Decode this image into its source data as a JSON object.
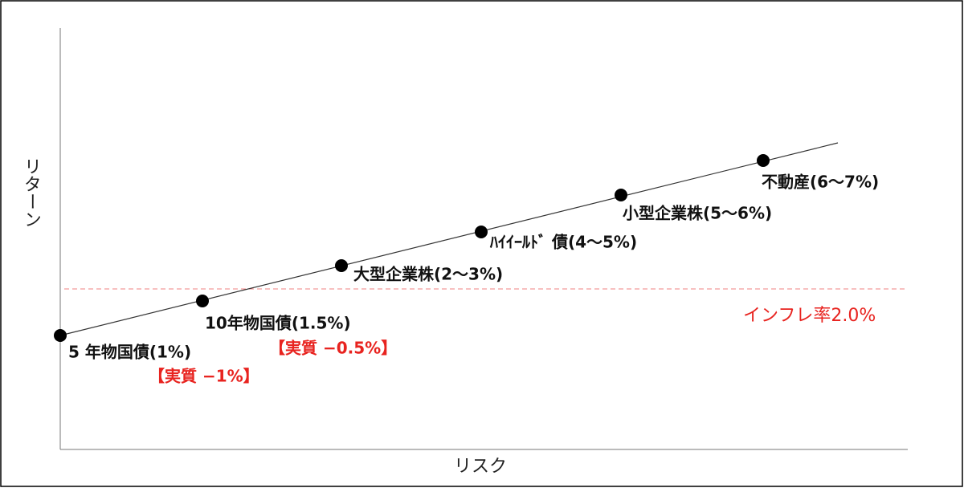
{
  "axes": {
    "x_label": "リスク",
    "y_label": "リターン"
  },
  "points": [
    {
      "label": "5 年物国債(1%)",
      "real": "【実質 −1%】"
    },
    {
      "label": "10年物国債(1.5%)",
      "real": "【実質 −0.5%】"
    },
    {
      "label": "大型企業株(2〜3%)"
    },
    {
      "label": "ﾊｲｲｰﾙﾄﾞ 債(4〜5%)"
    },
    {
      "label": "小型企業株(5〜6%)"
    },
    {
      "label": "不動産(6〜7%)"
    }
  ],
  "inflation": {
    "label": "インフレ率2.0%"
  }
}
